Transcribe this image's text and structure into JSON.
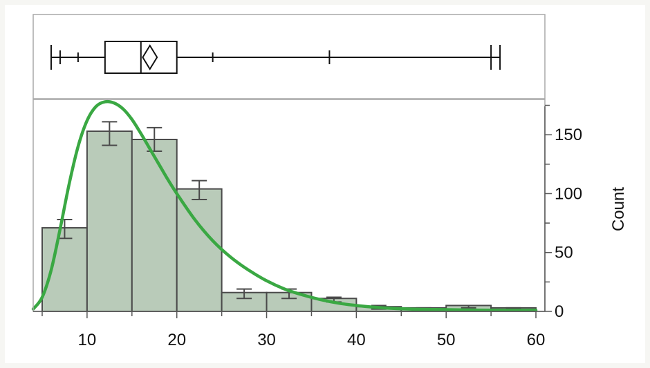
{
  "chart_data": {
    "type": "bar",
    "subtype": "histogram",
    "xlabel": "",
    "ylabel": "Count",
    "xlim": [
      4,
      61
    ],
    "ylim": [
      0,
      180
    ],
    "x_ticks": [
      10,
      20,
      30,
      40,
      50,
      60
    ],
    "y_ticks": [
      0,
      50,
      100,
      150
    ],
    "grid": false,
    "bins": [
      {
        "x0": 5,
        "x1": 10,
        "count": 71,
        "err": [
          62,
          78
        ]
      },
      {
        "x0": 10,
        "x1": 15,
        "count": 153,
        "err": [
          141,
          161
        ]
      },
      {
        "x0": 15,
        "x1": 20,
        "count": 146,
        "err": [
          136,
          156
        ]
      },
      {
        "x0": 20,
        "x1": 25,
        "count": 104,
        "err": [
          95,
          111
        ]
      },
      {
        "x0": 25,
        "x1": 30,
        "count": 16,
        "err": [
          11,
          19
        ]
      },
      {
        "x0": 30,
        "x1": 35,
        "count": 16,
        "err": [
          11,
          19
        ]
      },
      {
        "x0": 35,
        "x1": 40,
        "count": 11,
        "err": [
          8,
          12
        ]
      },
      {
        "x0": 40,
        "x1": 45,
        "count": 4,
        "err": [
          2,
          5
        ]
      },
      {
        "x0": 45,
        "x1": 50,
        "count": 3,
        "err": [
          2,
          3
        ]
      },
      {
        "x0": 50,
        "x1": 55,
        "count": 5,
        "err": [
          3,
          5
        ]
      },
      {
        "x0": 55,
        "x1": 60,
        "count": 3,
        "err": [
          2,
          3
        ]
      }
    ],
    "fitted_curve": {
      "color": "#3aa843",
      "x": [
        4,
        5,
        6,
        7,
        8,
        9,
        10,
        11,
        12,
        13,
        14,
        15,
        16,
        17,
        18,
        19,
        20,
        22,
        24,
        26,
        28,
        30,
        32,
        34,
        36,
        38,
        40,
        43,
        46,
        50,
        55,
        60
      ],
      "y": [
        2,
        12,
        35,
        70,
        108,
        140,
        162,
        174,
        178,
        177,
        172,
        163,
        151,
        138,
        125,
        112,
        100,
        78,
        60,
        46,
        35,
        26,
        19,
        14,
        10,
        7,
        5,
        3,
        2,
        1.5,
        1,
        1
      ]
    },
    "box_plot": {
      "min": 6,
      "q1": 12,
      "median": 16,
      "mean": 17,
      "mean_ci": [
        16.2,
        17.8
      ],
      "q3": 20,
      "max": 56,
      "outliers": [
        7,
        9,
        24,
        37,
        55
      ]
    }
  }
}
